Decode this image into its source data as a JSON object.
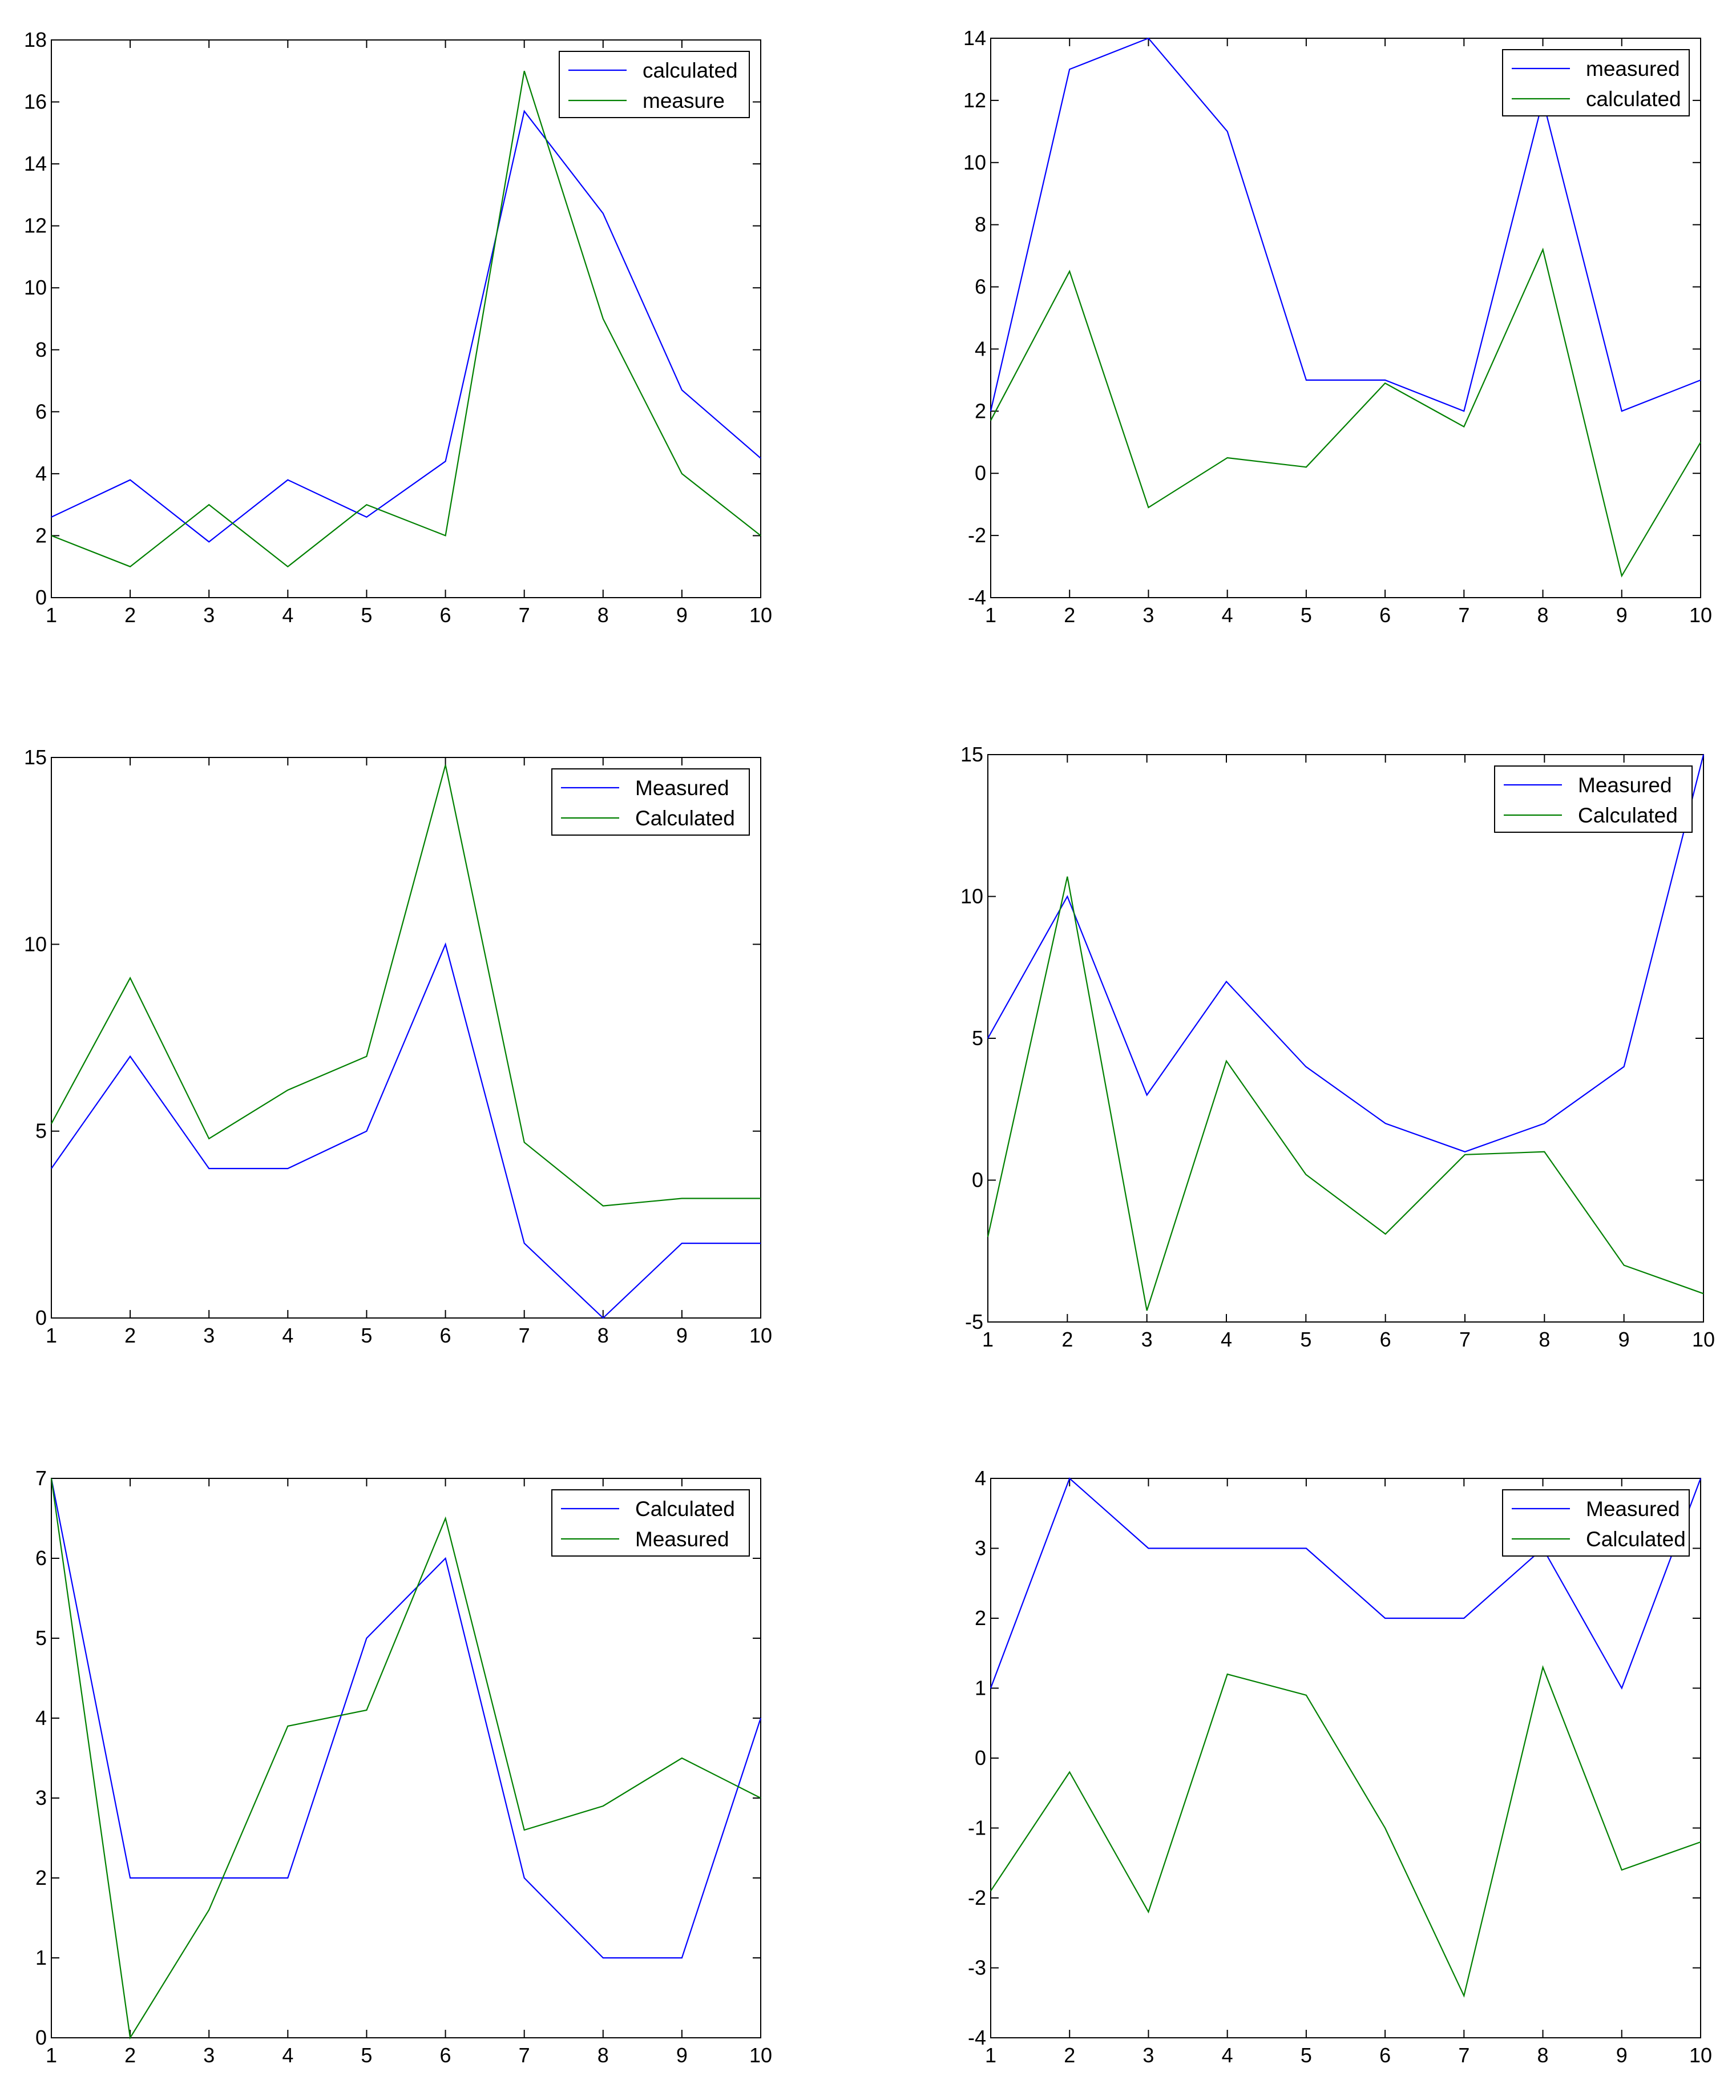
{
  "colors": {
    "series_1": "#0000ff",
    "series_2": "#008000"
  },
  "chart_data": [
    {
      "type": "line",
      "x": [
        1,
        2,
        3,
        4,
        5,
        6,
        7,
        8,
        9,
        10
      ],
      "xlim": [
        1,
        10
      ],
      "ylim": [
        0,
        18
      ],
      "yticks": [
        0,
        2,
        4,
        6,
        8,
        10,
        12,
        14,
        16,
        18
      ],
      "xticks": [
        1,
        2,
        3,
        4,
        5,
        6,
        7,
        8,
        9,
        10
      ],
      "legend_position": "top-right",
      "series": [
        {
          "name": "calculated",
          "color": "#0000ff",
          "values": [
            2.6,
            3.8,
            1.8,
            3.8,
            2.6,
            4.4,
            15.7,
            12.4,
            6.7,
            4.5
          ]
        },
        {
          "name": "measure",
          "color": "#008000",
          "values": [
            2,
            1,
            3,
            1,
            3,
            2,
            17,
            9,
            4,
            2
          ]
        }
      ]
    },
    {
      "type": "line",
      "x": [
        1,
        2,
        3,
        4,
        5,
        6,
        7,
        8,
        9,
        10
      ],
      "xlim": [
        1,
        10
      ],
      "ylim": [
        -4,
        14
      ],
      "yticks": [
        -4,
        -2,
        0,
        2,
        4,
        6,
        8,
        10,
        12,
        14
      ],
      "xticks": [
        1,
        2,
        3,
        4,
        5,
        6,
        7,
        8,
        9,
        10
      ],
      "legend_position": "top-right",
      "series": [
        {
          "name": "measured",
          "color": "#0000ff",
          "values": [
            2,
            13,
            14,
            11,
            3,
            3,
            2,
            12,
            2,
            3
          ]
        },
        {
          "name": "calculated",
          "color": "#008000",
          "values": [
            1.7,
            6.5,
            -1.1,
            0.5,
            0.2,
            2.9,
            1.5,
            7.2,
            -3.3,
            1.0
          ]
        }
      ]
    },
    {
      "type": "line",
      "x": [
        1,
        2,
        3,
        4,
        5,
        6,
        7,
        8,
        9,
        10
      ],
      "xlim": [
        1,
        10
      ],
      "ylim": [
        0,
        15
      ],
      "yticks": [
        0,
        5,
        10,
        15
      ],
      "xticks": [
        1,
        2,
        3,
        4,
        5,
        6,
        7,
        8,
        9,
        10
      ],
      "legend_position": "top-right",
      "series": [
        {
          "name": "Measured",
          "color": "#0000ff",
          "values": [
            4,
            7,
            4,
            4,
            5,
            10,
            2,
            0,
            2,
            2
          ]
        },
        {
          "name": "Calculated",
          "color": "#008000",
          "values": [
            5.2,
            9.1,
            4.8,
            6.1,
            7.0,
            14.8,
            4.7,
            3.0,
            3.2,
            3.2
          ]
        }
      ]
    },
    {
      "type": "line",
      "x": [
        1,
        2,
        3,
        4,
        5,
        6,
        7,
        8,
        9,
        10
      ],
      "xlim": [
        1,
        10
      ],
      "ylim": [
        -5,
        15
      ],
      "yticks": [
        -5,
        0,
        5,
        10,
        15
      ],
      "xticks": [
        1,
        2,
        3,
        4,
        5,
        6,
        7,
        8,
        9,
        10
      ],
      "legend_position": "top-right",
      "series": [
        {
          "name": "Measured",
          "color": "#0000ff",
          "values": [
            5,
            10,
            3,
            7,
            4,
            2,
            1,
            2,
            4,
            15
          ]
        },
        {
          "name": "Calculated",
          "color": "#008000",
          "values": [
            -2.0,
            10.7,
            -4.6,
            4.2,
            0.2,
            -1.9,
            0.9,
            1.0,
            -3.0,
            -4.0
          ]
        }
      ]
    },
    {
      "type": "line",
      "x": [
        1,
        2,
        3,
        4,
        5,
        6,
        7,
        8,
        9,
        10
      ],
      "xlim": [
        1,
        10
      ],
      "ylim": [
        0,
        7
      ],
      "yticks": [
        0,
        1,
        2,
        3,
        4,
        5,
        6,
        7
      ],
      "xticks": [
        1,
        2,
        3,
        4,
        5,
        6,
        7,
        8,
        9,
        10
      ],
      "legend_position": "top-right",
      "series": [
        {
          "name": "Calculated",
          "color": "#0000ff",
          "values": [
            7,
            2,
            2,
            2,
            5,
            6,
            2,
            1,
            1,
            4
          ]
        },
        {
          "name": "Measured",
          "color": "#008000",
          "values": [
            7.0,
            0.0,
            1.6,
            3.9,
            4.1,
            6.5,
            2.6,
            2.9,
            3.5,
            3.0
          ]
        }
      ]
    },
    {
      "type": "line",
      "x": [
        1,
        2,
        3,
        4,
        5,
        6,
        7,
        8,
        9,
        10
      ],
      "xlim": [
        1,
        10
      ],
      "ylim": [
        -4,
        4
      ],
      "yticks": [
        -4,
        -3,
        -2,
        -1,
        0,
        1,
        2,
        3,
        4
      ],
      "xticks": [
        1,
        2,
        3,
        4,
        5,
        6,
        7,
        8,
        9,
        10
      ],
      "legend_position": "top-right",
      "series": [
        {
          "name": "Measured",
          "color": "#0000ff",
          "values": [
            1,
            4,
            3,
            3,
            3,
            2,
            2,
            3,
            1,
            4
          ]
        },
        {
          "name": "Calculated",
          "color": "#008000",
          "values": [
            -1.9,
            -0.2,
            -2.2,
            1.2,
            0.9,
            -1.0,
            -3.4,
            1.3,
            -1.6,
            -1.2
          ]
        }
      ]
    }
  ]
}
